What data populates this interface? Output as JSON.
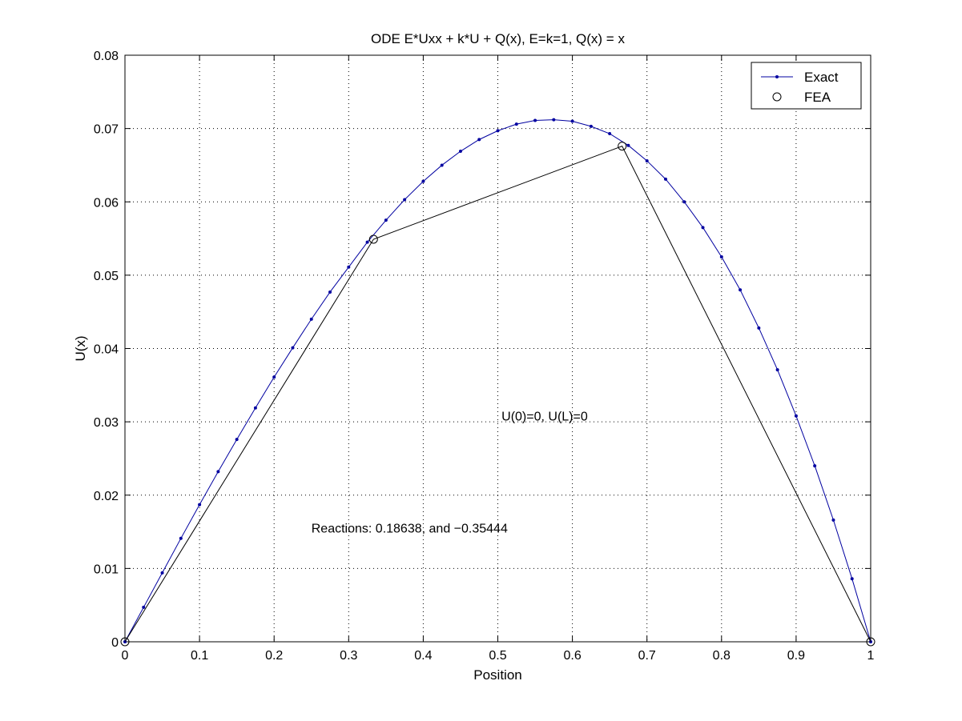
{
  "chart_data": {
    "type": "line",
    "title": "ODE E*Uxx + k*U + Q(x), E=k=1, Q(x) = x",
    "xlabel": "Position",
    "ylabel": "U(x)",
    "xlim": [
      0,
      1
    ],
    "ylim": [
      0,
      0.08
    ],
    "grid": true,
    "legend_position": "top-right",
    "x_ticks": [
      "0",
      "0.1",
      "0.2",
      "0.3",
      "0.4",
      "0.5",
      "0.6",
      "0.7",
      "0.8",
      "0.9",
      "1"
    ],
    "y_ticks": [
      "0",
      "0.01",
      "0.02",
      "0.03",
      "0.04",
      "0.05",
      "0.06",
      "0.07",
      "0.08"
    ],
    "series": [
      {
        "name": "Exact",
        "style": "line-dot-markers",
        "color": "#0000a0",
        "x": [
          0,
          0.025,
          0.05,
          0.075,
          0.1,
          0.125,
          0.15,
          0.175,
          0.2,
          0.225,
          0.25,
          0.275,
          0.3,
          0.325,
          0.35,
          0.375,
          0.4,
          0.425,
          0.45,
          0.475,
          0.5,
          0.525,
          0.55,
          0.575,
          0.6,
          0.625,
          0.65,
          0.675,
          0.7,
          0.725,
          0.75,
          0.775,
          0.8,
          0.825,
          0.85,
          0.875,
          0.9,
          0.925,
          0.95,
          0.975,
          1
        ],
        "y": [
          0,
          0.0047,
          0.0094,
          0.0141,
          0.0187,
          0.0232,
          0.0276,
          0.0319,
          0.0361,
          0.0401,
          0.044,
          0.0477,
          0.0511,
          0.0545,
          0.0575,
          0.0603,
          0.0628,
          0.065,
          0.0669,
          0.0685,
          0.0697,
          0.0706,
          0.0711,
          0.0712,
          0.071,
          0.0703,
          0.0693,
          0.0677,
          0.0656,
          0.0631,
          0.06,
          0.0565,
          0.0525,
          0.048,
          0.0428,
          0.0371,
          0.0308,
          0.024,
          0.0166,
          0.0086,
          0
        ]
      },
      {
        "name": "FEA",
        "style": "line-circle-markers",
        "color": "#000000",
        "x": [
          0,
          0.3333,
          0.6667,
          1
        ],
        "y": [
          0,
          0.0549,
          0.0676,
          0
        ]
      }
    ],
    "annotations": [
      {
        "text": "U(0)=0,   U(L)=0",
        "x": 0.505,
        "y": 0.0302
      },
      {
        "text": "Reactions: 0.18638, and −0.35444",
        "x": 0.25,
        "y": 0.0149
      }
    ]
  }
}
